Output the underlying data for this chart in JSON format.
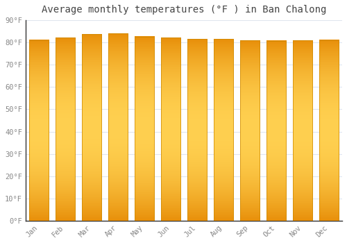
{
  "title": "Average monthly temperatures (°F ) in Ban Chalong",
  "months": [
    "Jan",
    "Feb",
    "Mar",
    "Apr",
    "May",
    "Jun",
    "Jul",
    "Aug",
    "Sep",
    "Oct",
    "Nov",
    "Dec"
  ],
  "values": [
    81.1,
    82.2,
    83.7,
    84.0,
    82.6,
    82.2,
    81.5,
    81.5,
    81.0,
    80.8,
    81.0,
    81.1
  ],
  "bar_color_left": "#E8900A",
  "bar_color_mid": "#FFD050",
  "bar_color_right": "#E8900A",
  "background_color": "#FFFFFF",
  "plot_bg_color": "#FFFFFF",
  "ylim": [
    0,
    90
  ],
  "yticks": [
    0,
    10,
    20,
    30,
    40,
    50,
    60,
    70,
    80,
    90
  ],
  "ytick_labels": [
    "0°F",
    "10°F",
    "20°F",
    "30°F",
    "40°F",
    "50°F",
    "60°F",
    "70°F",
    "80°F",
    "90°F"
  ],
  "grid_color": "#E0E5EE",
  "title_fontsize": 10,
  "tick_label_color": "#888888",
  "tick_label_fontsize": 7.5,
  "bar_width": 0.75,
  "bar_edge_color": "#CC8800",
  "bar_edge_width": 0.5,
  "spine_bottom_color": "#333333",
  "spine_left_color": "#333333"
}
